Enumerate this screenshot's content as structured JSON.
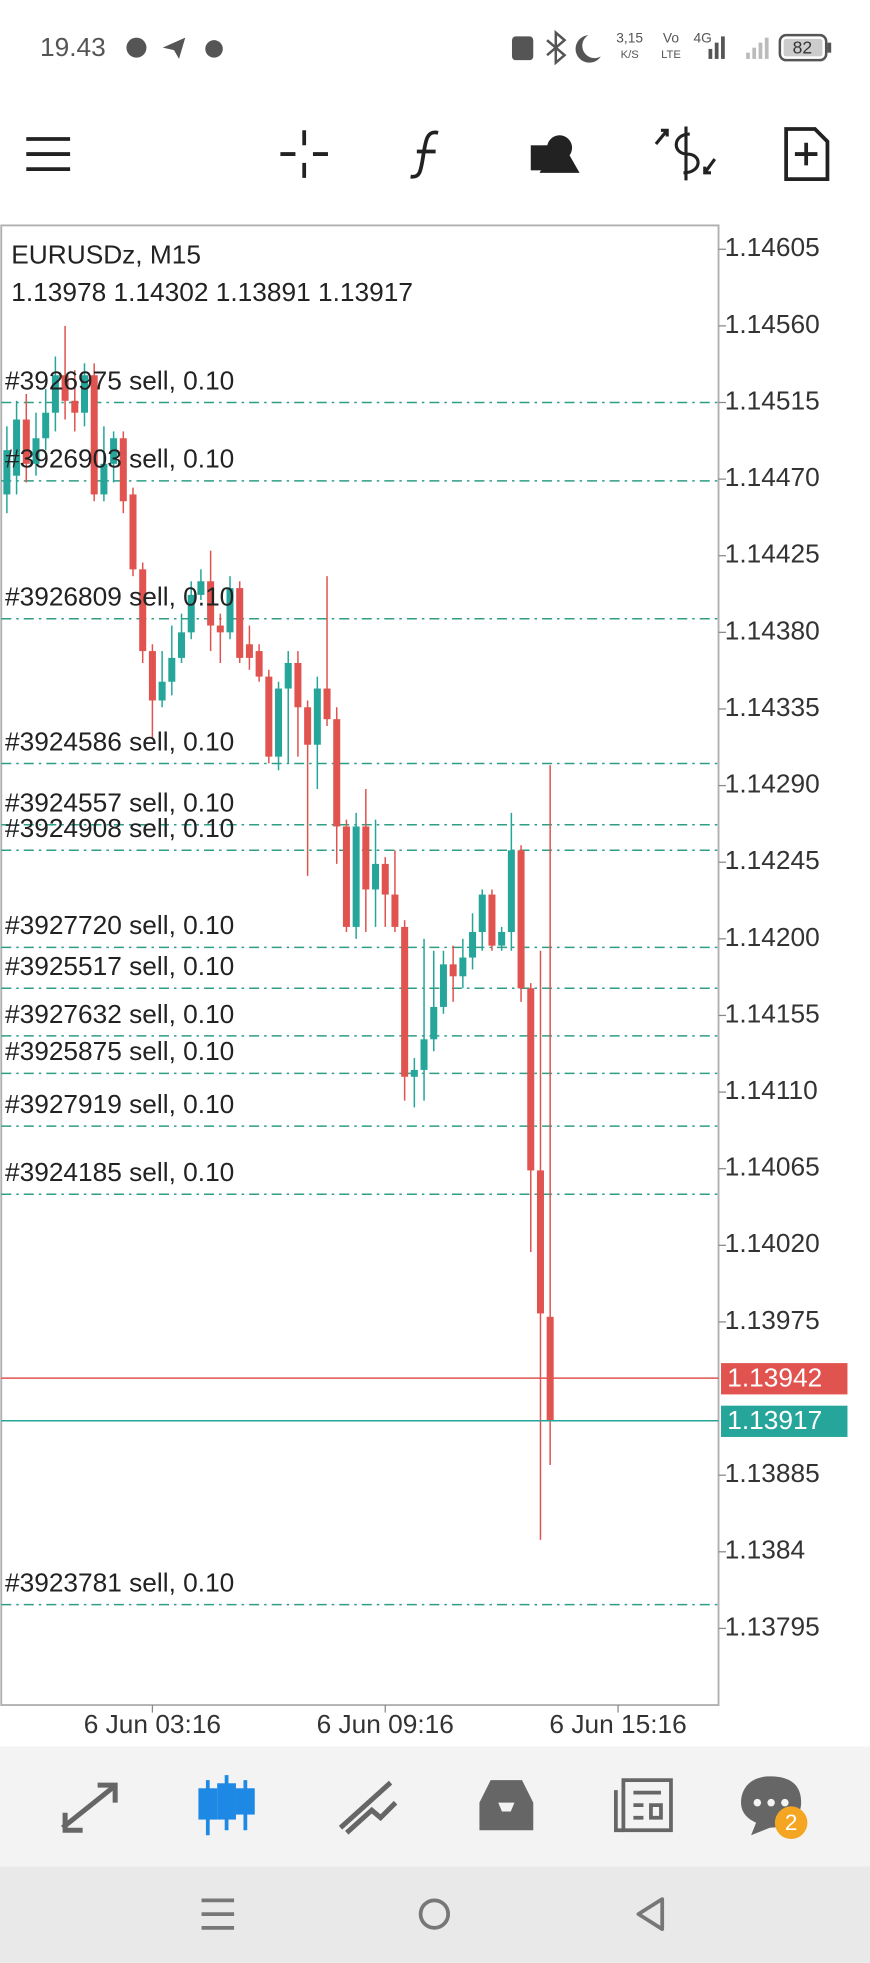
{
  "status_bar": {
    "time": "19.43",
    "speed": "3,15",
    "speed_unit": "K/S",
    "volte_top": "Vo",
    "volte_bottom": "LTE",
    "network": "4G",
    "battery": "82"
  },
  "chart_data": {
    "type": "candlestick",
    "title": "EURUSDz, M15",
    "subtitle": "1.13978 1.14302 1.13891 1.13917",
    "colors": {
      "up": "#26a69a",
      "down": "#e0534f",
      "order": "#2e9e86"
    },
    "categories": [
      null,
      null,
      null,
      null,
      null,
      null,
      null,
      null,
      null,
      null,
      null,
      null,
      null,
      null,
      null,
      "6 Jun 03:16",
      null,
      null,
      null,
      null,
      null,
      null,
      null,
      null,
      null,
      null,
      null,
      null,
      null,
      null,
      null,
      null,
      null,
      null,
      null,
      null,
      null,
      null,
      null,
      "6 Jun 09:16",
      null,
      null,
      null,
      null,
      null,
      null,
      null,
      null,
      null,
      null,
      null,
      null,
      null,
      null,
      null,
      null,
      null,
      null,
      null,
      null,
      null,
      null,
      null,
      "6 Jun 15:16"
    ],
    "open": [
      1.14461,
      1.14472,
      1.14505,
      1.14479,
      1.14494,
      1.14509,
      1.14531,
      1.14516,
      1.14509,
      1.14531,
      1.14461,
      1.14479,
      1.14494,
      1.14461,
      1.14417,
      1.14369,
      1.1434,
      1.14351,
      1.14365,
      1.1438,
      1.14402,
      1.1441,
      1.14384,
      1.1438,
      1.14406,
      1.14373,
      1.14369,
      1.14354,
      1.14307,
      1.14347,
      1.14362,
      1.14336,
      1.14314,
      1.14347,
      1.14329,
      1.14266,
      1.14207,
      1.14266,
      1.14229,
      1.14244,
      1.14226,
      1.14207,
      1.14119,
      1.14123,
      1.14141,
      1.1416,
      1.14185,
      1.14178,
      1.14189,
      1.14204,
      1.14226,
      1.14196,
      1.14204,
      1.14252,
      1.14171,
      1.14064,
      1.13978,
      null,
      null,
      null,
      null,
      null,
      null,
      null
    ],
    "high": [
      1.14501,
      1.14516,
      1.1452,
      1.14509,
      1.14523,
      1.14542,
      1.1456,
      1.14534,
      1.14538,
      1.14538,
      1.14501,
      1.14498,
      1.14498,
      1.14465,
      1.14421,
      1.14373,
      1.14369,
      1.14384,
      1.14391,
      1.1441,
      1.14417,
      1.14428,
      1.14391,
      1.14413,
      1.1441,
      1.14384,
      1.14373,
      1.14358,
      1.14351,
      1.14369,
      1.14369,
      1.1434,
      1.14354,
      1.14413,
      1.14336,
      1.1427,
      1.14274,
      1.14288,
      1.1427,
      1.14248,
      1.14252,
      1.14211,
      1.1413,
      1.142,
      1.14193,
      1.14193,
      1.14196,
      1.142,
      1.14215,
      1.14229,
      1.14229,
      1.14207,
      1.14274,
      1.14255,
      1.14174,
      1.14193,
      1.14302,
      null,
      null,
      null,
      null,
      null,
      null,
      null
    ],
    "low": [
      1.1445,
      1.14461,
      1.14468,
      1.14472,
      1.14487,
      1.14498,
      1.14505,
      1.14498,
      1.14501,
      1.14457,
      1.14457,
      1.14468,
      1.1445,
      1.14413,
      1.14362,
      1.14318,
      1.14336,
      1.14343,
      1.14362,
      1.14376,
      1.14399,
      1.14369,
      1.14362,
      1.14376,
      1.14362,
      1.14358,
      1.14351,
      1.14303,
      1.14299,
      1.14303,
      1.14307,
      1.14237,
      1.14288,
      1.14325,
      1.14244,
      1.14204,
      1.142,
      1.14204,
      1.14207,
      1.14207,
      1.14204,
      1.14105,
      1.14101,
      1.14105,
      1.14134,
      1.14156,
      1.14163,
      1.14171,
      1.14182,
      1.14193,
      1.14193,
      1.14193,
      1.14193,
      1.14163,
      1.14016,
      1.13847,
      1.13891,
      null,
      null,
      null,
      null,
      null,
      null,
      null
    ],
    "close": [
      1.14487,
      1.14505,
      1.14479,
      1.14494,
      1.14509,
      1.14531,
      1.14516,
      1.14509,
      1.14531,
      1.14461,
      1.14479,
      1.14494,
      1.14457,
      1.14417,
      1.14369,
      1.1434,
      1.14351,
      1.14365,
      1.1438,
      1.14402,
      1.1441,
      1.14384,
      1.1438,
      1.14406,
      1.14365,
      1.14365,
      1.14354,
      1.14307,
      1.14347,
      1.14362,
      1.14336,
      1.14314,
      1.14347,
      1.14329,
      1.14266,
      1.14207,
      1.14266,
      1.14229,
      1.14244,
      1.14226,
      1.14207,
      1.14119,
      1.14123,
      1.14141,
      1.1416,
      1.14185,
      1.14178,
      1.14189,
      1.14204,
      1.14226,
      1.14196,
      1.14204,
      1.14252,
      1.14171,
      1.14064,
      1.1398,
      1.13917,
      null,
      null,
      null,
      null,
      null,
      null,
      null
    ],
    "ylim": [
      1.1375,
      1.14619
    ],
    "yticks": [
      1.14605,
      {
        "value": 1.1456,
        "label": "1.14560"
      },
      1.14515,
      {
        "value": 1.1447,
        "label": "1.14470"
      },
      1.14425,
      {
        "value": 1.1438,
        "label": "1.14380"
      },
      1.14335,
      {
        "value": 1.1429,
        "label": "1.14290"
      },
      1.14245,
      {
        "value": 1.142,
        "label": "1.14200"
      },
      1.14155,
      {
        "value": 1.1411,
        "label": "1.14110"
      },
      1.14065,
      {
        "value": 1.1402,
        "label": "1.14020"
      },
      1.13975,
      1.13885,
      1.1384,
      1.13795
    ],
    "grid": false,
    "orders": [
      {
        "label": "#3926975 sell, 0.10",
        "price": 1.14515
      },
      {
        "label": "#3926903 sell, 0.10",
        "price": 1.14469
      },
      {
        "label": "#3926809 sell, 0.10",
        "price": 1.14388
      },
      {
        "label": "#3924586 sell, 0.10",
        "price": 1.14303
      },
      {
        "label": "#3924557 sell, 0.10",
        "price": 1.14267
      },
      {
        "label": "#3924908 sell, 0.10",
        "price": 1.14252
      },
      {
        "label": "#3927720 sell, 0.10",
        "price": 1.14195
      },
      {
        "label": "#3925517 sell, 0.10",
        "price": 1.14171
      },
      {
        "label": "#3927632 sell, 0.10",
        "price": 1.14143
      },
      {
        "label": "#3925875 sell, 0.10",
        "price": 1.14121
      },
      {
        "label": "#3927919 sell, 0.10",
        "price": 1.1409
      },
      {
        "label": "#3924185 sell, 0.10",
        "price": 1.1405
      },
      {
        "label": "#3923781 sell, 0.10",
        "price": 1.13809
      }
    ],
    "price_lines": [
      {
        "value": 1.13942,
        "label": "1.13942",
        "color": "#e0534f"
      },
      {
        "value": 1.13917,
        "label": "1.13917",
        "color": "#26a69a"
      }
    ]
  },
  "bottom_nav": {
    "chat_badge": "2"
  }
}
